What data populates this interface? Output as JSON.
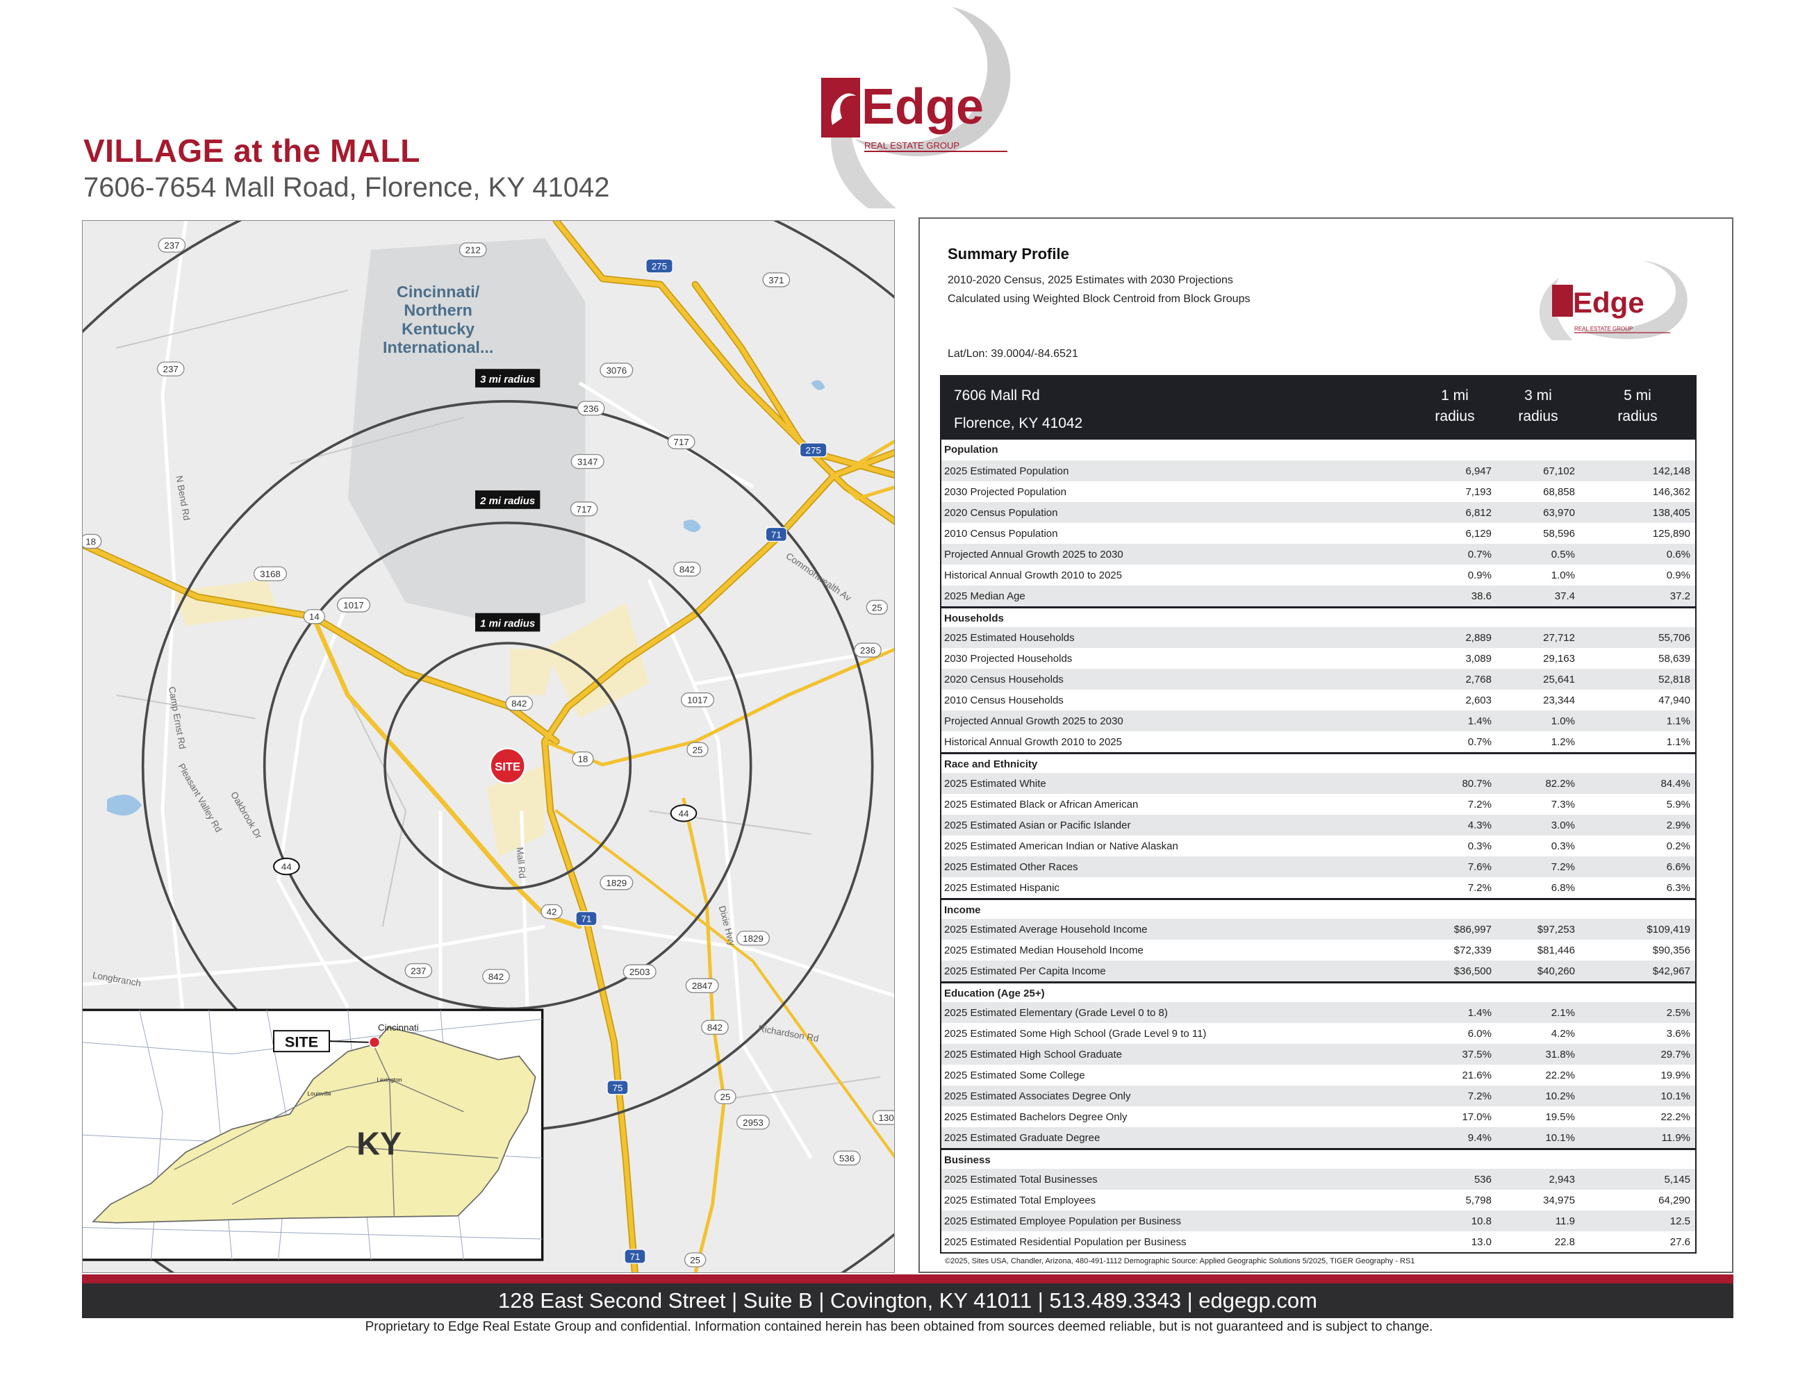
{
  "header": {
    "title": "VILLAGE at the MALL",
    "address": "7606-7654 Mall Road, Florence, KY 41042"
  },
  "logo": {
    "brand": "Edge",
    "tagline": "REAL ESTATE GROUP",
    "brand_color": "#a6192e"
  },
  "map": {
    "airport_label": [
      "Cincinnati/",
      "Northern",
      "Kentucky",
      "International..."
    ],
    "radius_labels": [
      "3 mi radius",
      "2 mi radius",
      "1 mi radius"
    ],
    "site_label": "SITE",
    "shields": [
      "237",
      "212",
      "275",
      "371",
      "237",
      "3076",
      "236",
      "717",
      "3147",
      "275",
      "717",
      "18",
      "71",
      "842",
      "3168",
      "1017",
      "14",
      "25",
      "236",
      "842",
      "1017",
      "18",
      "25",
      "44",
      "44",
      "1829",
      "42",
      "71",
      "1829",
      "237",
      "842",
      "2503",
      "2847",
      "842",
      "75",
      "25",
      "2953",
      "130",
      "536",
      "71",
      "25"
    ],
    "road_labels": [
      "N Bend Rd",
      "Camp Ernst Rd",
      "Pleasant Valley Rd",
      "Oakbrook Dr",
      "Mall Rd",
      "Dixie Hwy",
      "Commonwealth Av",
      "Richardson Rd",
      "Longbranch"
    ],
    "inset": {
      "site": "SITE",
      "state": "KY",
      "cities": [
        "Cincinnati",
        "Louisville",
        "Lexington"
      ]
    },
    "colors": {
      "highway": "#f2c230",
      "background": "#ececec",
      "radius_ring": "#4a4a4a",
      "site_marker": "#d9232e",
      "inset_state": "#f4eeb0"
    }
  },
  "summary": {
    "title": "Summary Profile",
    "subtitle1": "2010-2020 Census, 2025 Estimates with 2030 Projections",
    "subtitle2": "Calculated using Weighted Block Centroid from Block Groups",
    "latlon": "Lat/Lon: 39.0004/-84.6521",
    "table": {
      "address1": "7606 Mall Rd",
      "address2": "Florence, KY 41042",
      "columns": [
        {
          "l1": "1 mi",
          "l2": "radius"
        },
        {
          "l1": "3 mi",
          "l2": "radius"
        },
        {
          "l1": "5 mi",
          "l2": "radius"
        }
      ],
      "sections": [
        {
          "name": "Population",
          "rows": [
            {
              "label": "2025 Estimated Population",
              "values": [
                "6,947",
                "67,102",
                "142,148"
              ]
            },
            {
              "label": "2030 Projected Population",
              "values": [
                "7,193",
                "68,858",
                "146,362"
              ]
            },
            {
              "label": "2020 Census Population",
              "values": [
                "6,812",
                "63,970",
                "138,405"
              ]
            },
            {
              "label": "2010 Census Population",
              "values": [
                "6,129",
                "58,596",
                "125,890"
              ]
            },
            {
              "label": "Projected Annual Growth 2025 to 2030",
              "values": [
                "0.7%",
                "0.5%",
                "0.6%"
              ]
            },
            {
              "label": "Historical Annual Growth 2010 to 2025",
              "values": [
                "0.9%",
                "1.0%",
                "0.9%"
              ]
            },
            {
              "label": "2025 Median Age",
              "values": [
                "38.6",
                "37.4",
                "37.2"
              ]
            }
          ]
        },
        {
          "name": "Households",
          "rows": [
            {
              "label": "2025 Estimated Households",
              "values": [
                "2,889",
                "27,712",
                "55,706"
              ]
            },
            {
              "label": "2030 Projected Households",
              "values": [
                "3,089",
                "29,163",
                "58,639"
              ]
            },
            {
              "label": "2020 Census Households",
              "values": [
                "2,768",
                "25,641",
                "52,818"
              ]
            },
            {
              "label": "2010 Census Households",
              "values": [
                "2,603",
                "23,344",
                "47,940"
              ]
            },
            {
              "label": "Projected Annual Growth 2025 to 2030",
              "values": [
                "1.4%",
                "1.0%",
                "1.1%"
              ]
            },
            {
              "label": "Historical Annual Growth 2010 to 2025",
              "values": [
                "0.7%",
                "1.2%",
                "1.1%"
              ]
            }
          ]
        },
        {
          "name": "Race and Ethnicity",
          "rows": [
            {
              "label": "2025 Estimated White",
              "values": [
                "80.7%",
                "82.2%",
                "84.4%"
              ]
            },
            {
              "label": "2025 Estimated Black or African American",
              "values": [
                "7.2%",
                "7.3%",
                "5.9%"
              ]
            },
            {
              "label": "2025 Estimated Asian or Pacific Islander",
              "values": [
                "4.3%",
                "3.0%",
                "2.9%"
              ]
            },
            {
              "label": "2025 Estimated American Indian or Native Alaskan",
              "values": [
                "0.3%",
                "0.3%",
                "0.2%"
              ]
            },
            {
              "label": "2025 Estimated Other Races",
              "values": [
                "7.6%",
                "7.2%",
                "6.6%"
              ]
            },
            {
              "label": "2025 Estimated Hispanic",
              "values": [
                "7.2%",
                "6.8%",
                "6.3%"
              ]
            }
          ]
        },
        {
          "name": "Income",
          "rows": [
            {
              "label": "2025 Estimated Average Household Income",
              "values": [
                "$86,997",
                "$97,253",
                "$109,419"
              ]
            },
            {
              "label": "2025 Estimated Median Household Income",
              "values": [
                "$72,339",
                "$81,446",
                "$90,356"
              ]
            },
            {
              "label": "2025 Estimated Per Capita Income",
              "values": [
                "$36,500",
                "$40,260",
                "$42,967"
              ]
            }
          ]
        },
        {
          "name": "Education (Age 25+)",
          "rows": [
            {
              "label": "2025 Estimated Elementary (Grade Level 0 to 8)",
              "values": [
                "1.4%",
                "2.1%",
                "2.5%"
              ]
            },
            {
              "label": "2025 Estimated Some High School (Grade Level 9 to 11)",
              "values": [
                "6.0%",
                "4.2%",
                "3.6%"
              ]
            },
            {
              "label": "2025 Estimated High School Graduate",
              "values": [
                "37.5%",
                "31.8%",
                "29.7%"
              ]
            },
            {
              "label": "2025 Estimated Some College",
              "values": [
                "21.6%",
                "22.2%",
                "19.9%"
              ]
            },
            {
              "label": "2025 Estimated Associates Degree Only",
              "values": [
                "7.2%",
                "10.2%",
                "10.1%"
              ]
            },
            {
              "label": "2025 Estimated Bachelors Degree Only",
              "values": [
                "17.0%",
                "19.5%",
                "22.2%"
              ]
            },
            {
              "label": "2025 Estimated Graduate Degree",
              "values": [
                "9.4%",
                "10.1%",
                "11.9%"
              ]
            }
          ]
        },
        {
          "name": "Business",
          "rows": [
            {
              "label": "2025 Estimated Total Businesses",
              "values": [
                "536",
                "2,943",
                "5,145"
              ]
            },
            {
              "label": "2025 Estimated Total Employees",
              "values": [
                "5,798",
                "34,975",
                "64,290"
              ]
            },
            {
              "label": "2025 Estimated Employee Population per Business",
              "values": [
                "10.8",
                "11.9",
                "12.5"
              ]
            },
            {
              "label": "2025 Estimated Residential Population per Business",
              "values": [
                "13.0",
                "22.8",
                "27.6"
              ]
            }
          ]
        }
      ]
    },
    "footnote": "©2025, Sites USA, Chandler, Arizona, 480-491-1112   Demographic Source: Applied Geographic Solutions 5/2025, TIGER Geography - RS1"
  },
  "footer": {
    "contact": "128 East Second Street | Suite B | Covington, KY 41011 | 513.489.3343 | edgegp.com",
    "disclaimer": "Proprietary to Edge Real Estate Group and confidential.  Information contained herein has been obtained from sources deemed reliable, but is not guaranteed and is subject to change."
  }
}
